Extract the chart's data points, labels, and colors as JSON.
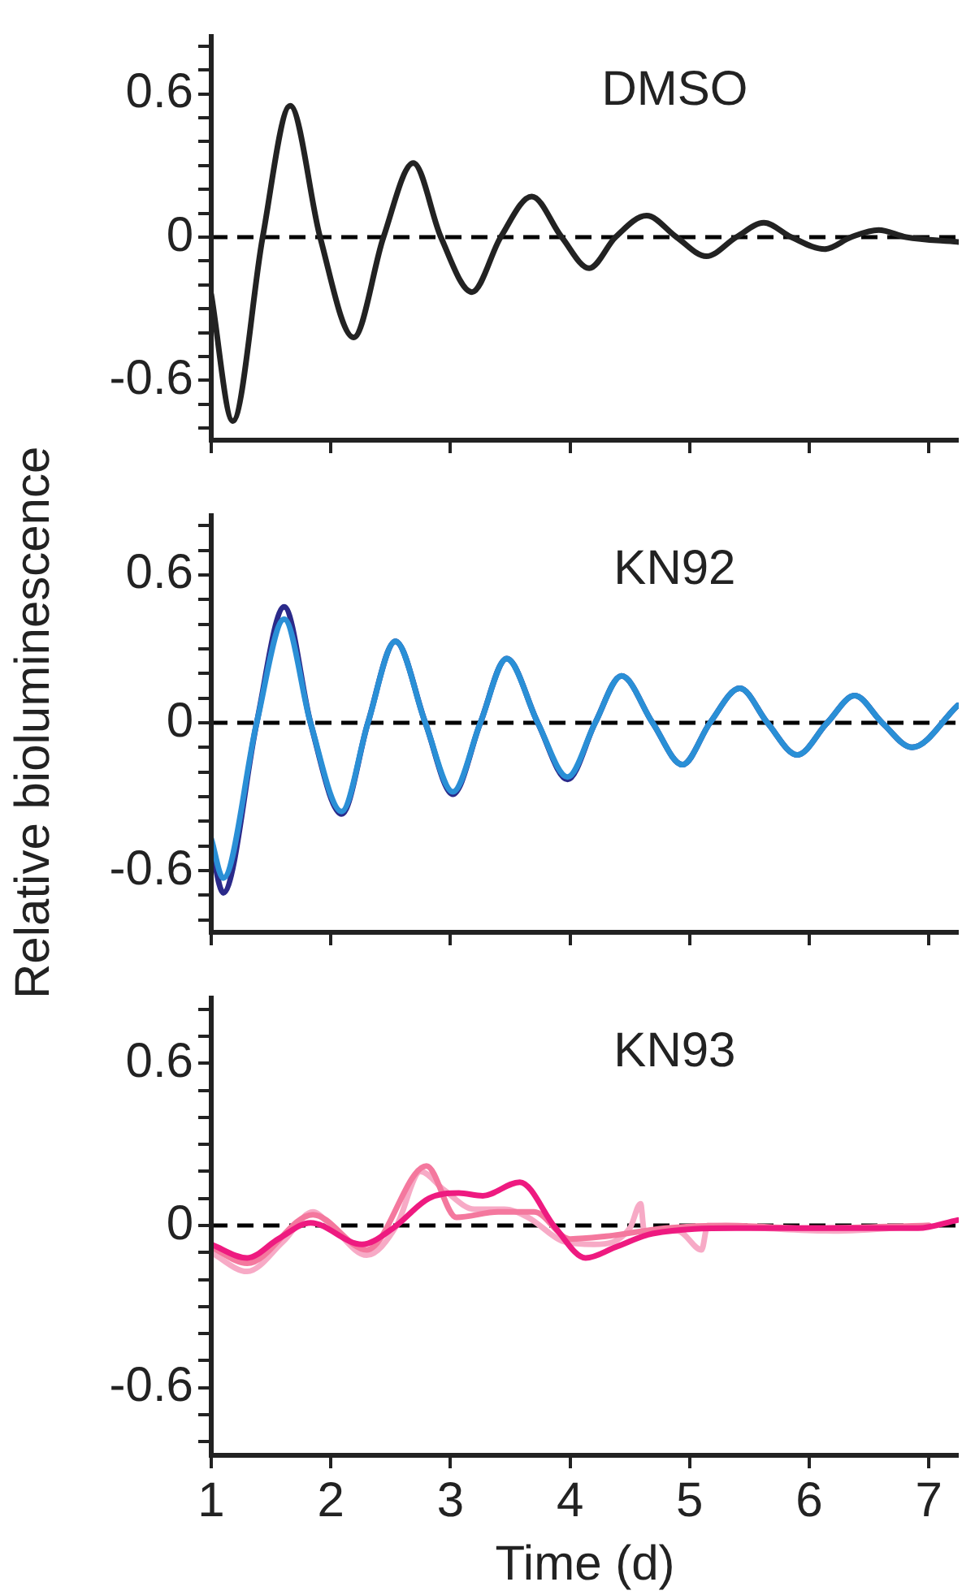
{
  "chart_data": [
    {
      "type": "line",
      "title": "DMSO",
      "tick_labels": "y",
      "xlim": [
        1,
        7.25
      ],
      "xticks": [
        1,
        2,
        3,
        4,
        5,
        6,
        7
      ],
      "ylim": [
        -0.85,
        0.85
      ],
      "yticks": [
        {
          "value": -0.8,
          "label": null
        },
        {
          "value": -0.7,
          "label": null
        },
        -0.6,
        {
          "value": -0.5,
          "label": null
        },
        {
          "value": -0.4,
          "label": null
        },
        {
          "value": -0.3,
          "label": null
        },
        {
          "value": -0.2,
          "label": null
        },
        {
          "value": -0.1,
          "label": null
        },
        0,
        {
          "value": 0.1,
          "label": null
        },
        {
          "value": 0.2,
          "label": null
        },
        {
          "value": 0.3,
          "label": null
        },
        {
          "value": 0.4,
          "label": null
        },
        {
          "value": 0.5,
          "label": null
        },
        0.6,
        {
          "value": 0.7,
          "label": null
        },
        {
          "value": 0.8,
          "label": null
        }
      ],
      "ref_lines": [
        {
          "axis": "y",
          "value": 0,
          "color": "#000000",
          "line_style": "dashed"
        }
      ],
      "series": [
        {
          "color": "#222222",
          "x": [
            1.0,
            1.18,
            1.43,
            1.66,
            1.91,
            2.19,
            2.44,
            2.69,
            2.92,
            3.18,
            3.42,
            3.68,
            3.93,
            4.16,
            4.38,
            4.64,
            4.89,
            5.14,
            5.39,
            5.62,
            5.85,
            6.13,
            6.35,
            6.58,
            6.81,
            7.24
          ],
          "values": [
            -0.24,
            -0.77,
            0,
            0.55,
            0,
            -0.42,
            0,
            0.31,
            0,
            -0.23,
            0,
            0.17,
            0,
            -0.13,
            0,
            0.09,
            0,
            -0.08,
            0,
            0.06,
            0,
            -0.05,
            0,
            0.03,
            0,
            -0.02
          ]
        }
      ]
    },
    {
      "type": "line",
      "title": "KN92",
      "ylabel": "Relative bioluminescence",
      "tick_labels": "y",
      "xlim": [
        1,
        7.25
      ],
      "xticks": [
        1,
        2,
        3,
        4,
        5,
        6,
        7
      ],
      "ylim": [
        -0.85,
        0.85
      ],
      "yticks": [
        {
          "value": -0.8,
          "label": null
        },
        {
          "value": -0.7,
          "label": null
        },
        -0.6,
        {
          "value": -0.5,
          "label": null
        },
        {
          "value": -0.4,
          "label": null
        },
        {
          "value": -0.3,
          "label": null
        },
        {
          "value": -0.2,
          "label": null
        },
        {
          "value": -0.1,
          "label": null
        },
        0,
        {
          "value": 0.1,
          "label": null
        },
        {
          "value": 0.2,
          "label": null
        },
        {
          "value": 0.3,
          "label": null
        },
        {
          "value": 0.4,
          "label": null
        },
        {
          "value": 0.5,
          "label": null
        },
        0.6,
        {
          "value": 0.7,
          "label": null
        },
        {
          "value": 0.8,
          "label": null
        }
      ],
      "ref_lines": [
        {
          "axis": "y",
          "value": 0,
          "color": "#000000",
          "line_style": "dashed"
        }
      ],
      "series": [
        {
          "color": "#2b2a8a",
          "x": [
            1.0,
            1.1,
            1.38,
            1.61,
            1.83,
            2.09,
            2.31,
            2.54,
            2.79,
            3.02,
            3.25,
            3.47,
            3.73,
            3.98,
            4.21,
            4.43,
            4.69,
            4.94,
            5.17,
            5.42,
            5.65,
            5.9,
            6.15,
            6.38,
            6.61,
            6.86,
            7.24
          ],
          "values": [
            -0.5,
            -0.69,
            0,
            0.47,
            0,
            -0.37,
            0,
            0.33,
            0,
            -0.29,
            0,
            0.26,
            0,
            -0.23,
            0,
            0.19,
            0,
            -0.17,
            0,
            0.14,
            0,
            -0.13,
            0,
            0.11,
            0,
            -0.1,
            0.07
          ]
        },
        {
          "color": "#2a8fd6",
          "x": [
            1.0,
            1.1,
            1.38,
            1.61,
            1.83,
            2.09,
            2.31,
            2.54,
            2.79,
            3.02,
            3.25,
            3.47,
            3.73,
            3.98,
            4.21,
            4.43,
            4.69,
            4.94,
            5.17,
            5.42,
            5.65,
            5.9,
            6.15,
            6.38,
            6.61,
            6.86,
            7.24
          ],
          "values": [
            -0.47,
            -0.63,
            0,
            0.42,
            0,
            -0.36,
            0,
            0.33,
            0,
            -0.28,
            0,
            0.26,
            0,
            -0.22,
            0,
            0.19,
            0,
            -0.17,
            0,
            0.14,
            0,
            -0.13,
            0,
            0.11,
            0,
            -0.1,
            0.07
          ]
        }
      ]
    },
    {
      "type": "line",
      "title": "KN93",
      "xlabel": "Time (d)",
      "xlim": [
        1,
        7.25
      ],
      "xticks": [
        1,
        2,
        3,
        4,
        5,
        6,
        7
      ],
      "ylim": [
        -0.85,
        0.85
      ],
      "yticks": [
        {
          "value": -0.8,
          "label": null
        },
        {
          "value": -0.7,
          "label": null
        },
        -0.6,
        {
          "value": -0.5,
          "label": null
        },
        {
          "value": -0.4,
          "label": null
        },
        {
          "value": -0.3,
          "label": null
        },
        {
          "value": -0.2,
          "label": null
        },
        {
          "value": -0.1,
          "label": null
        },
        0,
        {
          "value": 0.1,
          "label": null
        },
        {
          "value": 0.2,
          "label": null
        },
        {
          "value": 0.3,
          "label": null
        },
        {
          "value": 0.4,
          "label": null
        },
        {
          "value": 0.5,
          "label": null
        },
        0.6,
        {
          "value": 0.7,
          "label": null
        },
        {
          "value": 0.8,
          "label": null
        }
      ],
      "ref_lines": [
        {
          "axis": "y",
          "value": 0,
          "color": "#000000",
          "line_style": "dashed"
        }
      ],
      "series": [
        {
          "color": "#f7aac6",
          "x": [
            1.0,
            1.3,
            1.6,
            1.85,
            2.0,
            2.3,
            2.55,
            2.75,
            2.95,
            3.2,
            3.45,
            3.65,
            3.95,
            4.2,
            4.5,
            4.59,
            4.62,
            4.9,
            5.1,
            5.15,
            5.6,
            6.2,
            7.0
          ],
          "values": [
            -0.1,
            -0.17,
            -0.06,
            0.05,
            0,
            -0.11,
            0,
            0.2,
            0.13,
            0.06,
            0.06,
            0.03,
            -0.06,
            -0.07,
            -0.01,
            0.08,
            -0.02,
            -0.02,
            -0.09,
            0,
            -0.01,
            -0.02,
            0
          ]
        },
        {
          "color": "#f4789e",
          "x": [
            1.0,
            1.3,
            1.85,
            2.3,
            2.8,
            3.05,
            3.4,
            3.7,
            4.0,
            4.3,
            4.8,
            5.3,
            6.0,
            7.0
          ],
          "values": [
            -0.08,
            -0.14,
            0.04,
            -0.09,
            0.22,
            0.03,
            0.05,
            0.05,
            -0.05,
            -0.04,
            -0.01,
            0,
            -0.01,
            0
          ]
        },
        {
          "color": "#ee1a80",
          "x": [
            1.0,
            1.3,
            1.56,
            1.83,
            2.26,
            2.52,
            2.82,
            3.07,
            3.27,
            3.58,
            3.88,
            4.13,
            4.38,
            4.69,
            5.39,
            6.4,
            6.91,
            7.24
          ],
          "values": [
            -0.07,
            -0.12,
            -0.05,
            0.01,
            -0.07,
            -0.01,
            0.1,
            0.12,
            0.11,
            0.16,
            -0.01,
            -0.12,
            -0.08,
            -0.03,
            -0.01,
            -0.01,
            -0.01,
            0.02
          ]
        }
      ]
    }
  ]
}
